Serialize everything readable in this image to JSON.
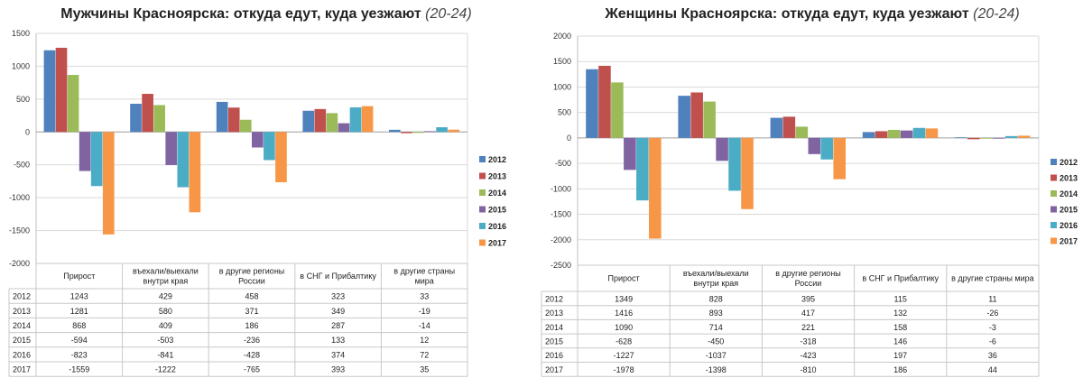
{
  "charts": [
    {
      "title": "Мужчины Красноярска: откуда едут, куда уезжают",
      "subtitle": "(20-24)",
      "chart_data": {
        "type": "bar",
        "categories": [
          "Прирост",
          "въехали/выехали внутри края",
          "в другие регионы России",
          "в СНГ и Прибалтику",
          "в другие страны мира"
        ],
        "ylim": [
          -2000,
          1500
        ],
        "yticks": [
          1500,
          1000,
          500,
          0,
          -500,
          -1000,
          -1500,
          -2000
        ],
        "grid": true,
        "legend": "right",
        "series": [
          {
            "name": "2012",
            "color": "#4F81BD",
            "values": [
              1243,
              429,
              458,
              323,
              33
            ]
          },
          {
            "name": "2013",
            "color": "#C0504D",
            "values": [
              1281,
              580,
              371,
              349,
              -19
            ]
          },
          {
            "name": "2014",
            "color": "#9BBB59",
            "values": [
              868,
              409,
              186,
              287,
              -14
            ]
          },
          {
            "name": "2015",
            "color": "#8064A2",
            "values": [
              -594,
              -503,
              -236,
              133,
              12
            ]
          },
          {
            "name": "2016",
            "color": "#4BACC6",
            "values": [
              -823,
              -841,
              -428,
              374,
              72
            ]
          },
          {
            "name": "2017",
            "color": "#F79646",
            "values": [
              -1559,
              -1222,
              -765,
              393,
              35
            ]
          }
        ]
      }
    },
    {
      "title": "Женщины Красноярска: откуда едут, куда уезжают",
      "subtitle": "(20-24)",
      "chart_data": {
        "type": "bar",
        "categories": [
          "Прирост",
          "въехали/выехали внутри края",
          "в другие регионы России",
          "в СНГ и Прибалтику",
          "в другие страны мира"
        ],
        "ylim": [
          -2500,
          2000
        ],
        "yticks": [
          2000,
          1500,
          1000,
          500,
          0,
          -500,
          -1000,
          -1500,
          -2000,
          -2500
        ],
        "grid": true,
        "legend": "right",
        "series": [
          {
            "name": "2012",
            "color": "#4F81BD",
            "values": [
              1349,
              828,
              395,
              115,
              11
            ]
          },
          {
            "name": "2013",
            "color": "#C0504D",
            "values": [
              1416,
              893,
              417,
              132,
              -26
            ]
          },
          {
            "name": "2014",
            "color": "#9BBB59",
            "values": [
              1090,
              714,
              221,
              158,
              -3
            ]
          },
          {
            "name": "2015",
            "color": "#8064A2",
            "values": [
              -628,
              -450,
              -318,
              146,
              -6
            ]
          },
          {
            "name": "2016",
            "color": "#4BACC6",
            "values": [
              -1227,
              -1037,
              -423,
              197,
              36
            ]
          },
          {
            "name": "2017",
            "color": "#F79646",
            "values": [
              -1978,
              -1398,
              -810,
              186,
              44
            ]
          }
        ]
      }
    }
  ]
}
